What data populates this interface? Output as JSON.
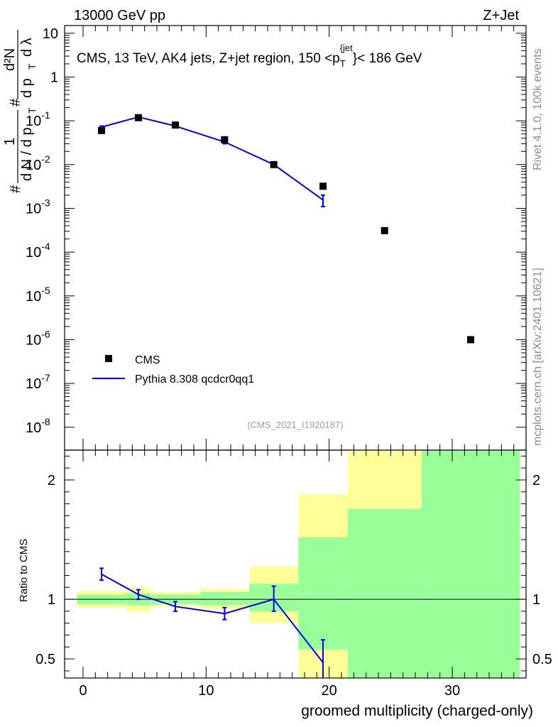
{
  "header": {
    "left": "13000 GeV pp",
    "right": "Z+Jet"
  },
  "side_labels": {
    "rivet": "Rivet 4.1.0,  100k events",
    "mcplots": "mcplots.cern.ch [arXiv:2401.10621]"
  },
  "chart_data": [
    {
      "type": "scatter",
      "title": "CMS, 13 TeV, AK4 jets, Z+jet region, 150 <p_T^{jet}< 186 GeV",
      "title_parts": {
        "main": "CMS, 13 TeV, AK4 jets, Z+jet region, 150 <p",
        "sub": "T",
        "sup": "{jet",
        "tail": "}< 186 GeV"
      },
      "ylabel": "1/(dN/dp_T) d²N/(dp_T dλ)",
      "ylabel_parts": {
        "hash": "#",
        "one": "1",
        "dN": "d N / d p",
        "T": "T",
        "d2N": "d²N",
        "dp": "d p",
        "dl": "d λ"
      },
      "yscale": "log",
      "ylim": [
        3e-09,
        15
      ],
      "xlim": [
        -1.5,
        36
      ],
      "yticks": [
        {
          "value": 1e-08,
          "base": "10",
          "exp": "-8"
        },
        {
          "value": 1e-07,
          "base": "10",
          "exp": "-7"
        },
        {
          "value": 1e-06,
          "base": "10",
          "exp": "-6"
        },
        {
          "value": 1e-05,
          "base": "10",
          "exp": "-5"
        },
        {
          "value": 0.0001,
          "base": "10",
          "exp": "-4"
        },
        {
          "value": 0.001,
          "base": "10",
          "exp": "-3"
        },
        {
          "value": 0.01,
          "base": "10",
          "exp": "-2"
        },
        {
          "value": 0.1,
          "base": "10",
          "exp": "-1"
        },
        {
          "value": 1,
          "base": "1",
          "exp": ""
        },
        {
          "value": 10,
          "base": "10",
          "exp": ""
        }
      ],
      "watermark": "(CMS_2021_I1920187)",
      "legend": {
        "placement": "bottom-left",
        "entries": [
          {
            "label": "CMS",
            "marker": "square",
            "color": "#000000"
          },
          {
            "label": "Pythia 8.308 qcdcr0qq1",
            "marker": "line",
            "color": "#0000ff"
          }
        ]
      },
      "series": [
        {
          "name": "CMS",
          "x": [
            1.5,
            4.5,
            7.5,
            11.5,
            15.5,
            19.5,
            24.5,
            31.5
          ],
          "y": [
            0.06,
            0.118,
            0.08,
            0.037,
            0.01,
            0.0032,
            0.00031,
            1e-06
          ]
        },
        {
          "name": "Pythia 8.308 qcdcr0qq1",
          "x": [
            1.5,
            4.5,
            7.5,
            11.5,
            15.5,
            19.5
          ],
          "y": [
            0.072,
            0.122,
            0.076,
            0.033,
            0.01,
            0.00155
          ],
          "err_low": [
            0.068,
            0.117,
            0.073,
            0.03,
            0.0093,
            0.0011
          ],
          "err_high": [
            0.076,
            0.127,
            0.079,
            0.036,
            0.0107,
            0.002
          ]
        }
      ]
    },
    {
      "type": "line",
      "ylabel": "Ratio to CMS",
      "xlabel": "groomed multiplicity (charged-only)",
      "ylim": [
        0.34,
        2.25
      ],
      "xlim": [
        -1.5,
        36
      ],
      "xticks": [
        0,
        10,
        20,
        30
      ],
      "yticks": [
        0.5,
        1,
        2
      ],
      "ytick_labels": [
        "0.5",
        "1",
        "2"
      ],
      "xtick_labels": [
        "0",
        "10",
        "20",
        "30"
      ],
      "bands": [
        {
          "x0": -0.5,
          "x1": 3.5,
          "y1_lo": 0.96,
          "y1_hi": 1.04,
          "y2_lo": 0.93,
          "y2_hi": 1.07
        },
        {
          "x0": 3.5,
          "x1": 5.5,
          "y1_lo": 0.95,
          "y1_hi": 1.05,
          "y2_lo": 0.9,
          "y2_hi": 1.1
        },
        {
          "x0": 5.5,
          "x1": 9.5,
          "y1_lo": 0.96,
          "y1_hi": 1.04,
          "y2_lo": 0.94,
          "y2_hi": 1.06
        },
        {
          "x0": 9.5,
          "x1": 13.5,
          "y1_lo": 0.95,
          "y1_hi": 1.06,
          "y2_lo": 0.92,
          "y2_hi": 1.09
        },
        {
          "x0": 13.5,
          "x1": 17.5,
          "y1_lo": 0.9,
          "y1_hi": 1.13,
          "y2_lo": 0.8,
          "y2_hi": 1.28
        },
        {
          "x0": 17.5,
          "x1": 21.5,
          "y1_lo": 0.58,
          "y1_hi": 1.52,
          "y2_lo": 0.34,
          "y2_hi": 1.88
        },
        {
          "x0": 21.5,
          "x1": 27.5,
          "y1_lo": 0.34,
          "y1_hi": 1.76,
          "y2_lo": 0.34,
          "y2_hi": 2.25
        },
        {
          "x0": 27.5,
          "x1": 35.5,
          "y1_lo": 0.34,
          "y1_hi": 2.25,
          "y2_lo": 0.34,
          "y2_hi": 2.25
        }
      ],
      "band_colors": {
        "inner": "#99ff99",
        "outer": "#ffff99"
      },
      "series": [
        {
          "name": "Pythia 8.308 qcdcr0qq1",
          "color": "#0000ff",
          "x": [
            1.5,
            4.5,
            7.5,
            11.5,
            15.5,
            19.5
          ],
          "y": [
            1.21,
            1.04,
            0.94,
            0.88,
            1.0,
            0.47
          ],
          "err_low": [
            1.16,
            1.0,
            0.9,
            0.83,
            0.9,
            0.34
          ],
          "err_high": [
            1.26,
            1.08,
            0.98,
            0.93,
            1.11,
            0.66
          ]
        }
      ]
    }
  ]
}
